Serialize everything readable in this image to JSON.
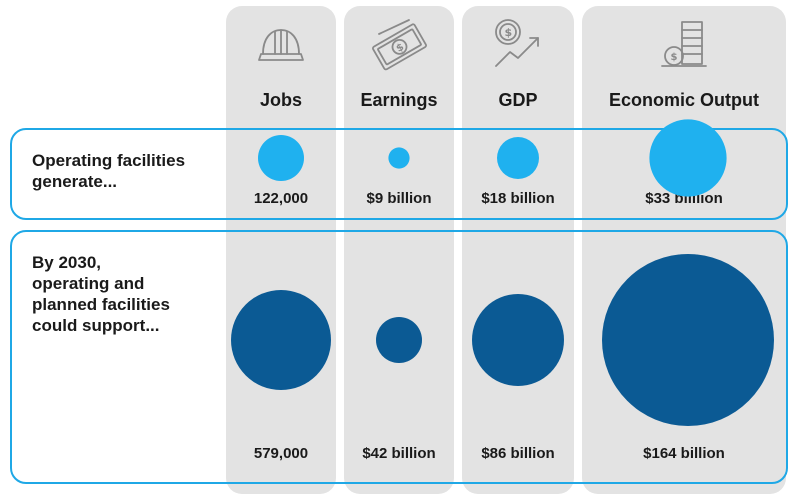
{
  "chart_data": {
    "type": "bubble-table",
    "categories": [
      "Jobs",
      "Earnings",
      "GDP",
      "Economic Output"
    ],
    "icons": [
      "hard-hat-icon",
      "money-bills-icon",
      "dollar-growth-icon",
      "coin-stack-icon"
    ],
    "rows": [
      {
        "label": "Operating facilities generate...",
        "values": [
          122000,
          9,
          18,
          33
        ],
        "value_labels": [
          "122,000",
          "$9 billion",
          "$18 billion",
          "$33 billlion"
        ],
        "color": "#1fb1ef"
      },
      {
        "label": "By 2030, operating and planned facilities could support...",
        "values": [
          579000,
          42,
          86,
          164
        ],
        "value_labels": [
          "579,000",
          "$42 billion",
          "$86 billion",
          "$164 billion"
        ],
        "color": "#0b5a94"
      }
    ],
    "colors": {
      "column_bg": "#e3e3e3",
      "row_border": "#1fa8e6",
      "bubble_light": "#1fb1ef",
      "bubble_dark": "#0b5a94"
    }
  },
  "rows_text": {
    "row1_line1": "Operating facilities",
    "row1_line2": "generate...",
    "row2_line1": "By 2030,",
    "row2_line2": "operating and",
    "row2_line3": "planned facilities",
    "row2_line4": "could support..."
  }
}
